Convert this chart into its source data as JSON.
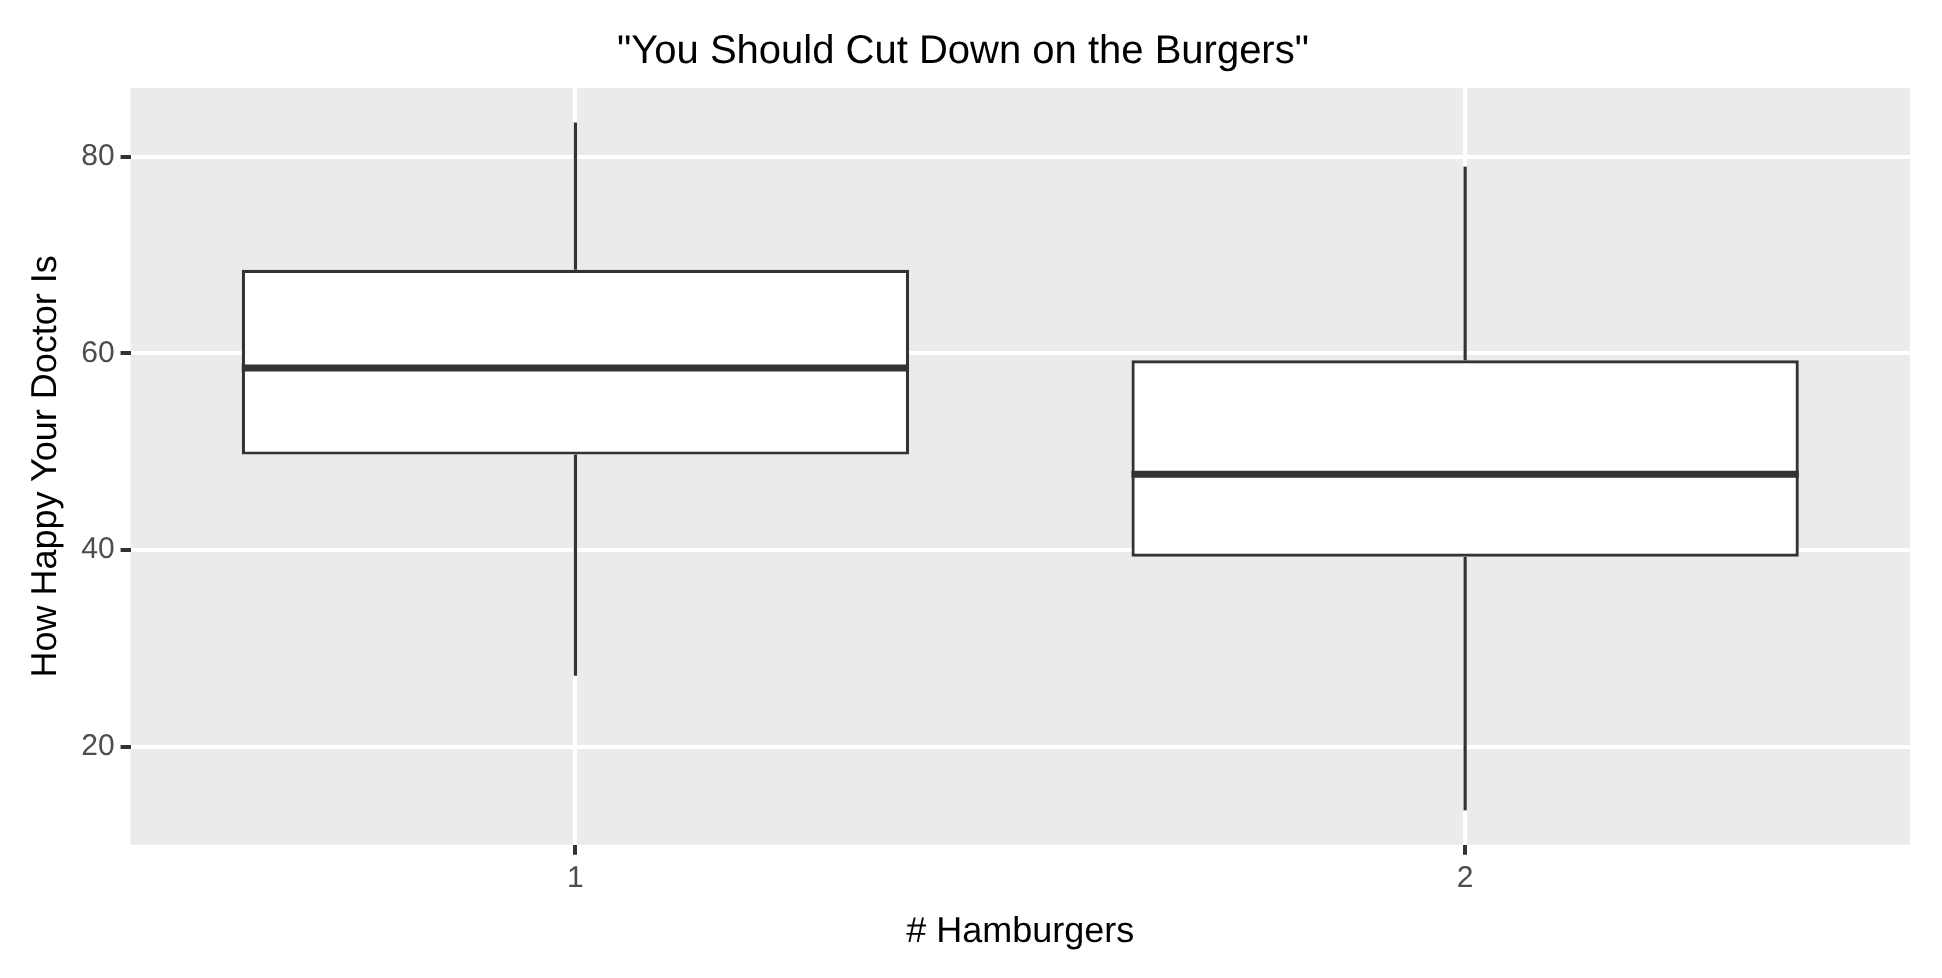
{
  "chart_data": {
    "type": "box",
    "title": "\"You Should Cut Down on the Burgers\"",
    "xlabel": "# Hamburgers",
    "ylabel": "How Happy Your Doctor Is",
    "categories": [
      "1",
      "2"
    ],
    "boxes": [
      {
        "low": 27.2,
        "q1": 49.7,
        "median": 58.5,
        "q3": 68.5,
        "high": 83.5
      },
      {
        "low": 13.5,
        "q1": 39.3,
        "median": 47.7,
        "q3": 59.3,
        "high": 79
      }
    ],
    "ylim": [
      10,
      87
    ],
    "yticks": [
      20,
      40,
      60,
      80
    ],
    "grid": true
  }
}
